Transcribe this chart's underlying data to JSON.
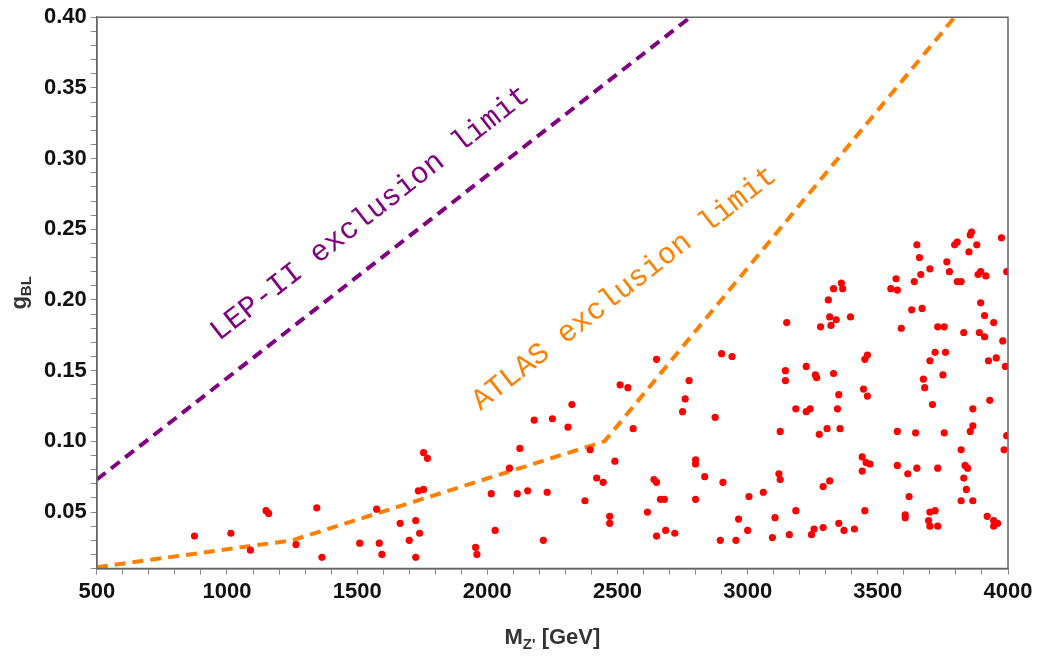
{
  "chart_data": {
    "type": "scatter",
    "xlabel": "M$_{Z'}$ [GeV]",
    "ylabel": "g$_{BL}$",
    "xlim": [
      500,
      4000
    ],
    "ylim": [
      0.01,
      0.4
    ],
    "xticks": [
      500,
      {
        "value": 600,
        "label": null
      },
      {
        "value": 700,
        "label": null
      },
      {
        "value": 800,
        "label": null
      },
      {
        "value": 900,
        "label": null
      },
      1000,
      {
        "value": 1100,
        "label": null
      },
      {
        "value": 1200,
        "label": null
      },
      {
        "value": 1300,
        "label": null
      },
      {
        "value": 1400,
        "label": null
      },
      1500,
      {
        "value": 1600,
        "label": null
      },
      {
        "value": 1700,
        "label": null
      },
      {
        "value": 1800,
        "label": null
      },
      {
        "value": 1900,
        "label": null
      },
      2000,
      {
        "value": 2100,
        "label": null
      },
      {
        "value": 2200,
        "label": null
      },
      {
        "value": 2300,
        "label": null
      },
      {
        "value": 2400,
        "label": null
      },
      2500,
      {
        "value": 2600,
        "label": null
      },
      {
        "value": 2700,
        "label": null
      },
      {
        "value": 2800,
        "label": null
      },
      {
        "value": 2900,
        "label": null
      },
      3000,
      {
        "value": 3100,
        "label": null
      },
      {
        "value": 3200,
        "label": null
      },
      {
        "value": 3300,
        "label": null
      },
      {
        "value": 3400,
        "label": null
      },
      3500,
      {
        "value": 3600,
        "label": null
      },
      {
        "value": 3700,
        "label": null
      },
      {
        "value": 3800,
        "label": null
      },
      {
        "value": 3900,
        "label": null
      },
      4000
    ],
    "yticks": [
      {
        "value": 0.01,
        "label": null
      },
      {
        "value": 0.02,
        "label": null
      },
      {
        "value": 0.03,
        "label": null
      },
      {
        "value": 0.04,
        "label": null
      },
      {
        "value": 0.05,
        "label": "0.05"
      },
      {
        "value": 0.06,
        "label": null
      },
      {
        "value": 0.07,
        "label": null
      },
      {
        "value": 0.08,
        "label": null
      },
      {
        "value": 0.09,
        "label": null
      },
      {
        "value": 0.1,
        "label": "0.10"
      },
      {
        "value": 0.11,
        "label": null
      },
      {
        "value": 0.12,
        "label": null
      },
      {
        "value": 0.13,
        "label": null
      },
      {
        "value": 0.14,
        "label": null
      },
      {
        "value": 0.15,
        "label": "0.15"
      },
      {
        "value": 0.16,
        "label": null
      },
      {
        "value": 0.17,
        "label": null
      },
      {
        "value": 0.18,
        "label": null
      },
      {
        "value": 0.19,
        "label": null
      },
      {
        "value": 0.2,
        "label": "0.20"
      },
      {
        "value": 0.21,
        "label": null
      },
      {
        "value": 0.22,
        "label": null
      },
      {
        "value": 0.23,
        "label": null
      },
      {
        "value": 0.24,
        "label": null
      },
      {
        "value": 0.25,
        "label": "0.25"
      },
      {
        "value": 0.26,
        "label": null
      },
      {
        "value": 0.27,
        "label": null
      },
      {
        "value": 0.28,
        "label": null
      },
      {
        "value": 0.29,
        "label": null
      },
      {
        "value": 0.3,
        "label": "0.30"
      },
      {
        "value": 0.31,
        "label": null
      },
      {
        "value": 0.32,
        "label": null
      },
      {
        "value": 0.33,
        "label": null
      },
      {
        "value": 0.34,
        "label": null
      },
      {
        "value": 0.35,
        "label": "0.35"
      },
      {
        "value": 0.36,
        "label": null
      },
      {
        "value": 0.37,
        "label": null
      },
      {
        "value": 0.38,
        "label": null
      },
      {
        "value": 0.39,
        "label": null
      },
      {
        "value": 0.4,
        "label": "0.40"
      }
    ],
    "grid": false,
    "legend": false,
    "annotations": [
      "LEP-II exclusion limit",
      "ATLAS exclusion limit"
    ],
    "series": [
      {
        "type": "line",
        "color": "#800080",
        "line_style": "dashed",
        "marker": "none",
        "x": [
          500,
          2780
        ],
        "values": [
          0.073,
          0.4
        ]
      },
      {
        "type": "line",
        "color": "#ff8000",
        "line_style": "dashed",
        "marker": "none",
        "x": [
          500,
          1250,
          2450,
          3795
        ],
        "values": [
          0.011,
          0.03,
          0.1,
          0.4
        ]
      },
      {
        "color": "#ff0000",
        "marker": "circle",
        "x": [
          875,
          1015,
          1090,
          1150,
          1160,
          1265,
          1345,
          1365,
          1510,
          1575,
          1585,
          1595,
          1665,
          1700,
          1725,
          1740,
          1725,
          1735,
          1755,
          1755,
          1770,
          1955,
          1960,
          2015,
          2030,
          2085,
          2115,
          2125,
          2155,
          2180,
          2215,
          2230,
          2250,
          2310,
          2325,
          2375,
          2395,
          2420,
          2445,
          2470,
          2470,
          2490,
          2510,
          2540,
          2560,
          2615,
          2640,
          2650,
          2650,
          2650,
          2665,
          2680,
          2685,
          2720,
          2750,
          2760,
          2775,
          2800,
          2800,
          2800,
          2835,
          2875,
          2900,
          2905,
          2895,
          2940,
          2955,
          2965,
          3000,
          3005,
          3060,
          3095,
          3105,
          3120,
          3125,
          3125,
          3145,
          3145,
          3150,
          3160,
          3185,
          3185,
          3225,
          3225,
          3240,
          3245,
          3255,
          3260,
          3265,
          3275,
          3280,
          3290,
          3290,
          3305,
          3310,
          3315,
          3315,
          3320,
          3330,
          3330,
          3340,
          3345,
          3350,
          3355,
          3350,
          3360,
          3365,
          3370,
          3395,
          3410,
          3440,
          3440,
          3450,
          3445,
          3450,
          3455,
          3460,
          3460,
          3470,
          3550,
          3570,
          3575,
          3575,
          3575,
          3590,
          3605,
          3605,
          3615,
          3620,
          3630,
          3640,
          3645,
          3650,
          3650,
          3660,
          3665,
          3670,
          3675,
          3680,
          3700,
          3700,
          3695,
          3700,
          3700,
          3710,
          3720,
          3720,
          3730,
          3730,
          3730,
          3750,
          3755,
          3755,
          3760,
          3765,
          3775,
          3795,
          3805,
          3805,
          3820,
          3820,
          3820,
          3830,
          3830,
          3835,
          3840,
          3845,
          3850,
          3855,
          3855,
          3860,
          3865,
          3865,
          3865,
          3880,
          3885,
          3890,
          3895,
          3895,
          3910,
          3910,
          3915,
          3920,
          3925,
          3930,
          3945,
          3945,
          3945,
          3955,
          3960,
          3975,
          3980,
          3985,
          3990,
          3995,
          3995
        ],
        "values": [
          0.033,
          0.035,
          0.023,
          0.051,
          0.049,
          0.027,
          0.053,
          0.018,
          0.028,
          0.052,
          0.028,
          0.02,
          0.042,
          0.03,
          0.044,
          0.035,
          0.018,
          0.065,
          0.066,
          0.092,
          0.088,
          0.025,
          0.02,
          0.063,
          0.037,
          0.081,
          0.063,
          0.095,
          0.065,
          0.115,
          0.03,
          0.064,
          0.116,
          0.11,
          0.126,
          0.058,
          0.094,
          0.074,
          0.071,
          0.047,
          0.042,
          0.086,
          0.14,
          0.138,
          0.109,
          0.05,
          0.073,
          0.071,
          0.033,
          0.158,
          0.059,
          0.059,
          0.037,
          0.035,
          0.121,
          0.13,
          0.143,
          0.087,
          0.084,
          0.059,
          0.075,
          0.117,
          0.162,
          0.071,
          0.03,
          0.16,
          0.03,
          0.045,
          0.037,
          0.061,
          0.064,
          0.032,
          0.046,
          0.077,
          0.073,
          0.107,
          0.15,
          0.143,
          0.184,
          0.034,
          0.123,
          0.051,
          0.153,
          0.121,
          0.123,
          0.034,
          0.038,
          0.147,
          0.145,
          0.105,
          0.181,
          0.039,
          0.068,
          0.109,
          0.2,
          0.188,
          0.072,
          0.182,
          0.148,
          0.208,
          0.186,
          0.123,
          0.133,
          0.109,
          0.042,
          0.212,
          0.208,
          0.037,
          0.188,
          0.038,
          0.089,
          0.079,
          0.158,
          0.137,
          0.051,
          0.085,
          0.132,
          0.161,
          0.084,
          0.208,
          0.215,
          0.207,
          0.107,
          0.083,
          0.18,
          0.048,
          0.046,
          0.077,
          0.061,
          0.193,
          0.213,
          0.106,
          0.081,
          0.239,
          0.23,
          0.218,
          0.194,
          0.144,
          0.138,
          0.222,
          0.157,
          0.044,
          0.05,
          0.04,
          0.126,
          0.051,
          0.163,
          0.181,
          0.04,
          0.081,
          0.147,
          0.181,
          0.106,
          0.163,
          0.227,
          0.22,
          0.239,
          0.241,
          0.213,
          0.213,
          0.094,
          0.058,
          0.177,
          0.074,
          0.083,
          0.066,
          0.081,
          0.234,
          0.107,
          0.246,
          0.248,
          0.111,
          0.123,
          0.058,
          0.239,
          0.218,
          0.177,
          0.22,
          0.198,
          0.174,
          0.189,
          0.217,
          0.047,
          0.157,
          0.129,
          0.044,
          0.184,
          0.04,
          0.159,
          0.042,
          0.244,
          0.171,
          0.094,
          0.153,
          0.22,
          0.104
        ]
      }
    ]
  }
}
